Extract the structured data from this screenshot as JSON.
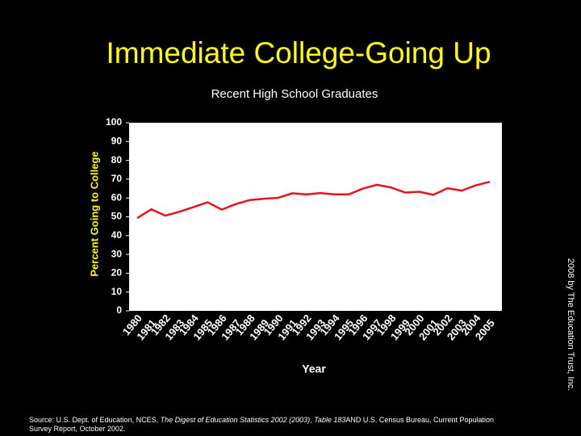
{
  "chart_data": {
    "type": "line",
    "title": "Immediate College-Going Up",
    "subtitle": "Recent High School Graduates",
    "y_label": "Percent Going to College",
    "x_label": "Year",
    "categories": [
      "1980",
      "1981",
      "1982",
      "1983",
      "1984",
      "1985",
      "1986",
      "1987",
      "1988",
      "1989",
      "1990",
      "1991",
      "1992",
      "1993",
      "1994",
      "1995",
      "1996",
      "1997",
      "1998",
      "1999",
      "2000",
      "2001",
      "2002",
      "2003",
      "2004",
      "2005"
    ],
    "series": [
      {
        "color": "#e8141c",
        "values": [
          49.3,
          54.0,
          50.6,
          52.7,
          55.2,
          57.7,
          53.8,
          56.8,
          58.9,
          59.6,
          60.1,
          62.5,
          61.9,
          62.6,
          61.9,
          61.9,
          65.0,
          67.0,
          65.6,
          62.9,
          63.3,
          61.7,
          65.2,
          63.9,
          66.7,
          68.6
        ]
      }
    ],
    "ylim": [
      0,
      100
    ],
    "yticks": [
      0,
      10,
      20,
      30,
      40,
      50,
      60,
      70,
      80,
      90,
      100
    ],
    "grid": false
  },
  "credit": "2008 by The Education Trust, Inc.",
  "source": {
    "part1": "Source: U.S. Dept. of Education, NCES, ",
    "italic1": "The Digest of Education Statistics 2002 (2003)",
    "part2": ", ",
    "italic2": "Table 183",
    "part3": "AND U.S. Census Bureau, Current Population Survey Report, October 2002."
  }
}
